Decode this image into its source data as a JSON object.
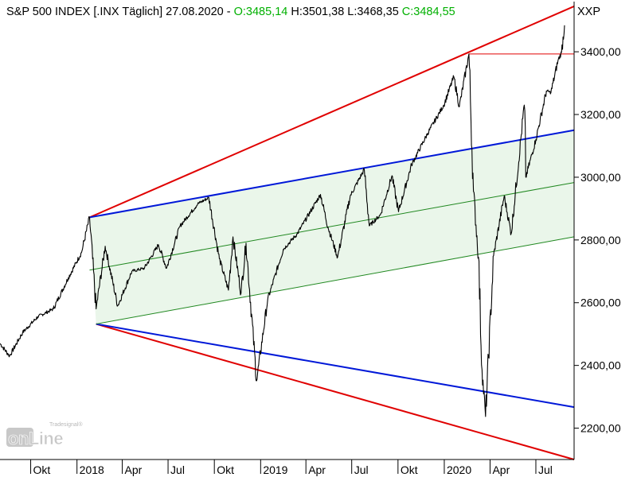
{
  "header": {
    "instrument": "S&P 500 INDEX [.INX  Täglich] 27.08.2020",
    "sep1": " - ",
    "open": "O:3485,14",
    "high": "H:3501,38",
    "low": "L:3468,35",
    "close": "C:3484,55",
    "symbol": "XXP"
  },
  "logo": {
    "text_top": "Tradesignal®",
    "text_main": "onLine"
  },
  "colors": {
    "up": "#00b000",
    "text": "#000000",
    "red_line": "#e00000",
    "blue_line": "#0018d8",
    "green_line": "#208820",
    "channel_fill": "#eaf6ea",
    "price": "#000000"
  },
  "chart_data": {
    "type": "line",
    "title": "S&P 500 INDEX [.INX  Täglich] 27.08.2020",
    "xlabel": "",
    "ylabel": "",
    "y_axis_position": "right",
    "ylim": [
      2100,
      3560
    ],
    "y_ticks": [
      2200,
      2400,
      2600,
      2800,
      3000,
      3200,
      3400
    ],
    "y_tick_labels": [
      "2200,00",
      "2400,00",
      "2600,00",
      "2800,00",
      "3000,00",
      "3200,00",
      "3400,00"
    ],
    "x_range": [
      "2017-08-01",
      "2020-09-15"
    ],
    "x_ticks": [
      {
        "date": "2017-10-01",
        "label": "Okt"
      },
      {
        "date": "2018-01-01",
        "label": "2018"
      },
      {
        "date": "2018-04-01",
        "label": "Apr"
      },
      {
        "date": "2018-07-01",
        "label": "Jul"
      },
      {
        "date": "2018-10-01",
        "label": "Okt"
      },
      {
        "date": "2019-01-01",
        "label": "2019"
      },
      {
        "date": "2019-04-01",
        "label": "Apr"
      },
      {
        "date": "2019-07-01",
        "label": "Jul"
      },
      {
        "date": "2019-10-01",
        "label": "Okt"
      },
      {
        "date": "2020-01-01",
        "label": "2020"
      },
      {
        "date": "2020-04-01",
        "label": "Apr"
      },
      {
        "date": "2020-07-01",
        "label": "Jul"
      }
    ],
    "series": [
      {
        "values": [
          [
            "2017-08-01",
            2470
          ],
          [
            "2017-08-20",
            2430
          ],
          [
            "2017-09-15",
            2505
          ],
          [
            "2017-10-15",
            2555
          ],
          [
            "2017-11-15",
            2580
          ],
          [
            "2017-12-15",
            2680
          ],
          [
            "2018-01-10",
            2760
          ],
          [
            "2018-01-26",
            2872
          ],
          [
            "2018-02-08",
            2580
          ],
          [
            "2018-02-26",
            2780
          ],
          [
            "2018-03-23",
            2590
          ],
          [
            "2018-04-20",
            2700
          ],
          [
            "2018-05-15",
            2710
          ],
          [
            "2018-06-12",
            2785
          ],
          [
            "2018-06-28",
            2710
          ],
          [
            "2018-07-25",
            2845
          ],
          [
            "2018-08-29",
            2915
          ],
          [
            "2018-09-20",
            2935
          ],
          [
            "2018-10-11",
            2740
          ],
          [
            "2018-10-29",
            2640
          ],
          [
            "2018-11-07",
            2810
          ],
          [
            "2018-11-23",
            2630
          ],
          [
            "2018-12-03",
            2790
          ],
          [
            "2018-12-24",
            2351
          ],
          [
            "2019-01-15",
            2610
          ],
          [
            "2019-02-15",
            2770
          ],
          [
            "2019-03-15",
            2820
          ],
          [
            "2019-04-30",
            2945
          ],
          [
            "2019-05-15",
            2840
          ],
          [
            "2019-06-03",
            2745
          ],
          [
            "2019-06-28",
            2940
          ],
          [
            "2019-07-26",
            3025
          ],
          [
            "2019-08-05",
            2845
          ],
          [
            "2019-08-27",
            2880
          ],
          [
            "2019-09-19",
            3005
          ],
          [
            "2019-10-02",
            2890
          ],
          [
            "2019-10-28",
            3040
          ],
          [
            "2019-11-29",
            3140
          ],
          [
            "2019-12-31",
            3230
          ],
          [
            "2020-01-20",
            3320
          ],
          [
            "2020-01-31",
            3225
          ],
          [
            "2020-02-19",
            3393
          ],
          [
            "2020-02-28",
            2955
          ],
          [
            "2020-03-09",
            2745
          ],
          [
            "2020-03-16",
            2386
          ],
          [
            "2020-03-23",
            2237
          ],
          [
            "2020-04-08",
            2750
          ],
          [
            "2020-04-29",
            2940
          ],
          [
            "2020-05-13",
            2820
          ],
          [
            "2020-06-08",
            3230
          ],
          [
            "2020-06-11",
            3000
          ],
          [
            "2020-07-01",
            3120
          ],
          [
            "2020-07-22",
            3275
          ],
          [
            "2020-07-31",
            3270
          ],
          [
            "2020-08-14",
            3372
          ],
          [
            "2020-08-21",
            3398
          ],
          [
            "2020-08-27",
            3484.55
          ]
        ]
      }
    ],
    "lines": [
      {
        "id": "outer-upper-trendline",
        "color": "#e00000",
        "from": [
          "2018-01-26",
          2872
        ],
        "to": [
          "2020-09-15",
          3545
        ]
      },
      {
        "id": "outer-lower-trendline",
        "color": "#e00000",
        "from": [
          "2018-02-08",
          2532
        ],
        "to": [
          "2020-09-15",
          2100
        ]
      },
      {
        "id": "channel-upper-trendline",
        "color": "#0018d8",
        "from": [
          "2018-01-26",
          2872
        ],
        "to": [
          "2020-09-15",
          3150
        ]
      },
      {
        "id": "channel-lower-trendline",
        "color": "#0018d8",
        "from": [
          "2018-02-08",
          2532
        ],
        "to": [
          "2020-09-15",
          2267
        ]
      },
      {
        "id": "channel-mid-line",
        "color": "#208820",
        "from": [
          "2018-01-26",
          2704
        ],
        "to": [
          "2020-09-15",
          2983
        ]
      },
      {
        "id": "channel-bottom-line",
        "color": "#208820",
        "from": [
          "2018-02-08",
          2532
        ],
        "to": [
          "2020-09-15",
          2810
        ]
      },
      {
        "id": "horizontal-resistance-line",
        "color": "#e00000",
        "from": [
          "2020-02-19",
          3393
        ],
        "to": [
          "2020-09-15",
          3393
        ]
      }
    ],
    "grid": false,
    "legend": "none"
  }
}
